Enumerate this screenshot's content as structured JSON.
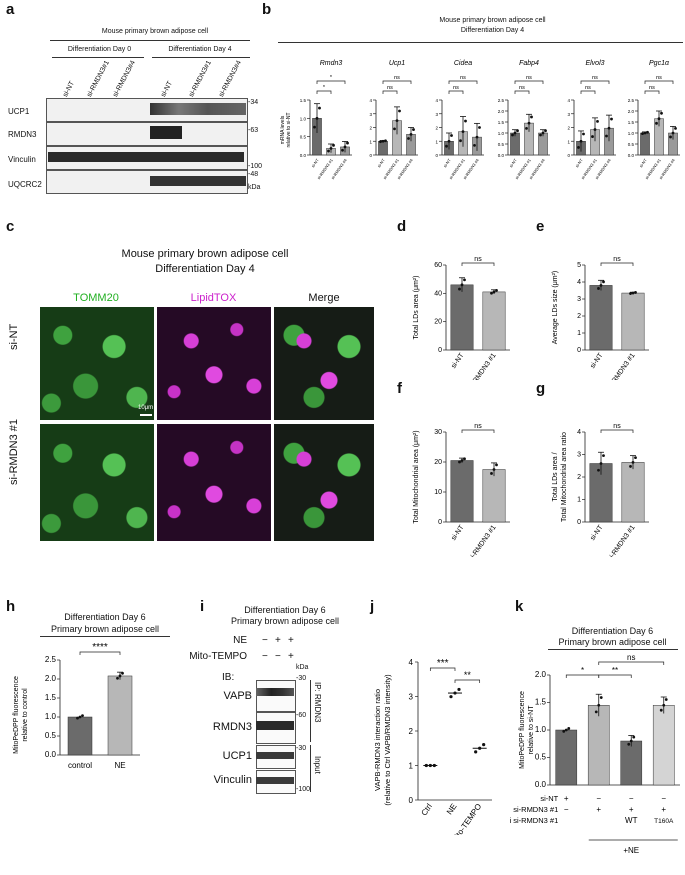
{
  "panel_letters": {
    "a": "a",
    "b": "b",
    "c": "c",
    "d": "d",
    "e": "e",
    "f": "f",
    "g": "g",
    "h": "h",
    "i": "i",
    "j": "j",
    "k": "k"
  },
  "a": {
    "title": "Mouse primary brown adipose cell",
    "group1": "Differentiation Day 0",
    "group2": "Differentiation Day 4",
    "lanes": [
      "si-NT",
      "si-RMDN3#1",
      "si-RMDN3#4",
      "si-NT",
      "si-RMDN3#1",
      "si-RMDN3#4"
    ],
    "rows": [
      "UCP1",
      "RMDN3",
      "Vinculin",
      "UQCRC2"
    ],
    "markers": [
      "-34",
      "-63",
      "-100",
      "-48",
      "kDa"
    ]
  },
  "b": {
    "title1": "Mouse primary brown adipose cell",
    "title2": "Differentiation Day 4",
    "ylabel1": "mRNA levels",
    "ylabel2": "relative to si-NT",
    "xcats": [
      "si-NT",
      "si-RMDN3 #1",
      "si-RMDN3 #4"
    ],
    "genes": [
      {
        "name": "Rmdn3",
        "ticks": [
          "0.0",
          "0.5",
          "1.0",
          "1.5"
        ],
        "sig1": "*",
        "sig2": "*"
      },
      {
        "name": "Ucp1",
        "ticks": [
          "0",
          "1",
          "2",
          "3",
          "4"
        ],
        "sig1": "ns",
        "sig2": "ns"
      },
      {
        "name": "Cidea",
        "ticks": [
          "0",
          "1",
          "2",
          "3",
          "4"
        ],
        "sig1": "ns",
        "sig2": "ns"
      },
      {
        "name": "Fabp4",
        "ticks": [
          "0.0",
          "0.5",
          "1.0",
          "1.5",
          "2.0",
          "2.5"
        ],
        "sig1": "ns",
        "sig2": "ns"
      },
      {
        "name": "Elvol3",
        "ticks": [
          "0",
          "1",
          "2",
          "3",
          "4"
        ],
        "sig1": "ns",
        "sig2": "ns"
      },
      {
        "name": "Pgc1α",
        "ticks": [
          "0.0",
          "0.5",
          "1.0",
          "1.5",
          "2.0",
          "2.5"
        ],
        "sig1": "ns",
        "sig2": "ns"
      }
    ]
  },
  "c": {
    "title1": "Mouse primary brown adipose cell",
    "title2": "Differentiation Day 4",
    "col1": "TOMM20",
    "col2": "LipidTOX",
    "col3": "Merge",
    "row1": "si-NT",
    "row2": "si-RMDN3 #1",
    "scale": "10μm",
    "col1_color": "#22b022",
    "col2_color": "#cc22cc"
  },
  "d": {
    "ylabel": "Total LDs area (μm²)",
    "ticks": [
      "0",
      "20",
      "40",
      "60"
    ],
    "x": [
      "si-NT",
      "si-RMDN3 #1"
    ],
    "sig": "ns"
  },
  "e": {
    "ylabel": "Average LDs size (μm²)",
    "ticks": [
      "0",
      "1",
      "2",
      "3",
      "4",
      "5"
    ],
    "x": [
      "si-NT",
      "si-RMDN3 #1"
    ],
    "sig": "ns"
  },
  "f": {
    "ylabel": "Total Mitochondrial area (μm²)",
    "ticks": [
      "0",
      "10",
      "20",
      "30"
    ],
    "x": [
      "si-NT",
      "si-RMDN3 #1"
    ],
    "sig": "ns"
  },
  "g": {
    "ylabel1": "Total LDs area /",
    "ylabel2": "Total Mitochondrial area ratio",
    "ticks": [
      "0",
      "1",
      "2",
      "3",
      "4"
    ],
    "x": [
      "si-NT",
      "si-RMDN3 #1"
    ],
    "sig": "ns"
  },
  "h": {
    "title1": "Differentiation Day 6",
    "title2": "Primary brown adipose cell",
    "ylabel1": "MitoPeDPP fluorescence",
    "ylabel2": "relative to control",
    "ticks": [
      "0.0",
      "0.5",
      "1.0",
      "1.5",
      "2.0",
      "2.5"
    ],
    "x": [
      "control",
      "NE"
    ],
    "sig": "****"
  },
  "i": {
    "title1": "Differentiation Day 6",
    "title2": "Primary brown adipose cell",
    "ne_label": "NE",
    "mito_label": "Mito-TEMPO",
    "ne_signs": [
      "−",
      "+",
      "+"
    ],
    "mito_signs": [
      "−",
      "−",
      "+"
    ],
    "ib": "IB:",
    "rows": [
      "VAPB",
      "RMDN3",
      "UCP1",
      "Vinculin"
    ],
    "markers": [
      "kDa",
      "-30",
      "-60",
      "-30",
      "-100"
    ],
    "side1": "IP: RMDN3",
    "side2": "Input"
  },
  "j": {
    "ylabel1": "VAPB-RMDN3 interaction ratio",
    "ylabel2": "(relative to Ctrl VAPB/RMDN3 intensity)",
    "ticks": [
      "0",
      "1",
      "2",
      "3",
      "4"
    ],
    "x": [
      "Ctrl",
      "NE",
      "NE + Mito-TEMPO"
    ],
    "sig1": "***",
    "sig2": "**"
  },
  "k": {
    "title1": "Differentiation Day 6",
    "title2": "Primary brown adipose cell",
    "ylabel1": "MitoPeDPP fluorescence",
    "ylabel2": "relative to si-NT",
    "ticks": [
      "0.0",
      "0.5",
      "1.0",
      "1.5",
      "2.0"
    ],
    "sig1": "*",
    "sig2": "**",
    "sig3": "ns",
    "rows": [
      "si-NT",
      "si-RMDN3 #1",
      "resi si-RMDN3 #1"
    ],
    "row_vals": [
      [
        "+",
        "−",
        "−",
        "−"
      ],
      [
        "−",
        "+",
        "+",
        "+"
      ],
      [
        "",
        "",
        "WT",
        "T160A"
      ]
    ],
    "footer": "+NE"
  },
  "chart_data": [
    {
      "type": "bar",
      "panel": "b",
      "title": "Rmdn3",
      "categories": [
        "si-NT",
        "si-RMDN3 #1",
        "si-RMDN3 #4"
      ],
      "values": [
        1.0,
        0.18,
        0.22
      ],
      "errors": [
        0.4,
        0.12,
        0.15
      ],
      "ylim": [
        0,
        1.5
      ]
    },
    {
      "type": "bar",
      "panel": "b",
      "title": "Ucp1",
      "categories": [
        "si-NT",
        "si-RMDN3 #1",
        "si-RMDN3 #4"
      ],
      "values": [
        1.0,
        2.5,
        1.5
      ],
      "errors": [
        0.05,
        1.0,
        0.5
      ],
      "ylim": [
        0,
        4
      ]
    },
    {
      "type": "bar",
      "panel": "b",
      "title": "Cidea",
      "categories": [
        "si-NT",
        "si-RMDN3 #1",
        "si-RMDN3 #4"
      ],
      "values": [
        1.0,
        1.7,
        1.3
      ],
      "errors": [
        0.6,
        1.1,
        1.0
      ],
      "ylim": [
        0,
        4
      ]
    },
    {
      "type": "bar",
      "panel": "b",
      "title": "Fabp4",
      "categories": [
        "si-NT",
        "si-RMDN3 #1",
        "si-RMDN3 #4"
      ],
      "values": [
        1.0,
        1.45,
        1.0
      ],
      "errors": [
        0.15,
        0.4,
        0.15
      ],
      "ylim": [
        0,
        2.5
      ]
    },
    {
      "type": "bar",
      "panel": "b",
      "title": "Elvol3",
      "categories": [
        "si-NT",
        "si-RMDN3 #1",
        "si-RMDN3 #4"
      ],
      "values": [
        1.0,
        1.85,
        1.95
      ],
      "errors": [
        0.75,
        0.85,
        0.95
      ],
      "ylim": [
        0,
        4
      ]
    },
    {
      "type": "bar",
      "panel": "b",
      "title": "Pgc1α",
      "categories": [
        "si-NT",
        "si-RMDN3 #1",
        "si-RMDN3 #4"
      ],
      "values": [
        1.0,
        1.65,
        1.0
      ],
      "errors": [
        0.05,
        0.35,
        0.3
      ],
      "ylim": [
        0,
        2.5
      ]
    },
    {
      "type": "bar",
      "panel": "d",
      "categories": [
        "si-NT",
        "si-RMDN3 #1"
      ],
      "values": [
        46,
        41
      ],
      "errors": [
        5,
        1.5
      ],
      "ylim": [
        0,
        60
      ]
    },
    {
      "type": "bar",
      "panel": "e",
      "categories": [
        "si-NT",
        "si-RMDN3 #1"
      ],
      "values": [
        3.8,
        3.35
      ],
      "errors": [
        0.3,
        0.05
      ],
      "ylim": [
        0,
        5
      ]
    },
    {
      "type": "bar",
      "panel": "f",
      "categories": [
        "si-NT",
        "si-RMDN3 #1"
      ],
      "values": [
        20.5,
        17.5
      ],
      "errors": [
        0.8,
        2.2
      ],
      "ylim": [
        0,
        30
      ]
    },
    {
      "type": "bar",
      "panel": "g",
      "categories": [
        "si-NT",
        "si-RMDN3 #1"
      ],
      "values": [
        2.6,
        2.65
      ],
      "errors": [
        0.5,
        0.3
      ],
      "ylim": [
        0,
        4
      ]
    },
    {
      "type": "bar",
      "panel": "h",
      "categories": [
        "control",
        "NE"
      ],
      "values": [
        1.0,
        2.08
      ],
      "errors": [
        0.0,
        0.1
      ],
      "ylim": [
        0,
        2.5
      ]
    },
    {
      "type": "scatter",
      "panel": "j",
      "categories": [
        "Ctrl",
        "NE",
        "NE + Mito-TEMPO"
      ],
      "values": [
        1.0,
        3.1,
        1.5
      ],
      "ylim": [
        0,
        4
      ]
    },
    {
      "type": "bar",
      "panel": "k",
      "categories": [
        "si-NT",
        "si-RMDN3 #1",
        "si-RMDN3 #1 + WT",
        "si-RMDN3 #1 + T160A"
      ],
      "values": [
        1.0,
        1.45,
        0.8,
        1.45
      ],
      "errors": [
        0.0,
        0.2,
        0.1,
        0.15
      ],
      "ylim": [
        0,
        2.0
      ]
    }
  ]
}
